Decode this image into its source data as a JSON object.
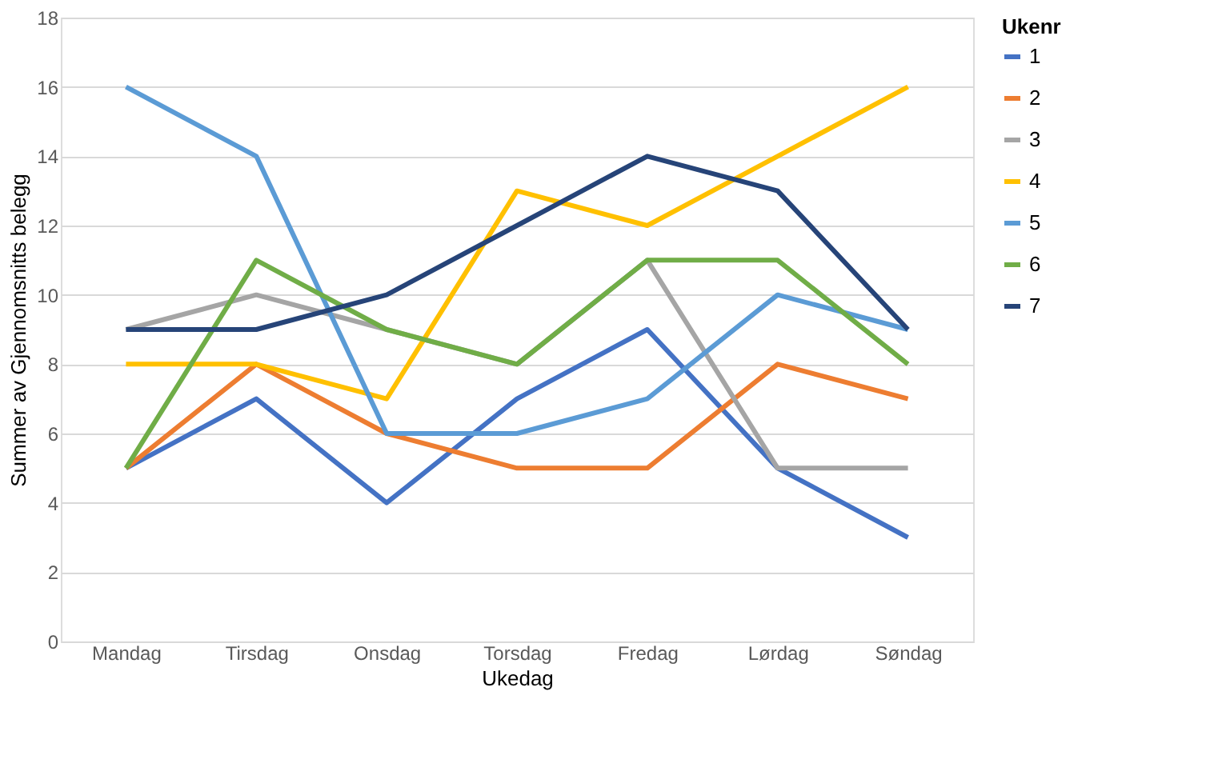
{
  "chart_data": {
    "type": "line",
    "ylabel": "Summer av Gjennomsnitts belegg",
    "xlabel": "Ukedag",
    "legend_title": "Ukenr",
    "categories": [
      "Mandag",
      "Tirsdag",
      "Onsdag",
      "Torsdag",
      "Fredag",
      "Lørdag",
      "Søndag"
    ],
    "series": [
      {
        "name": "1",
        "color": "#4472c4",
        "values": [
          5,
          7,
          4,
          7,
          9,
          5,
          3
        ]
      },
      {
        "name": "2",
        "color": "#ed7d31",
        "values": [
          5,
          8,
          6,
          5,
          5,
          8,
          7
        ]
      },
      {
        "name": "3",
        "color": "#a5a5a5",
        "values": [
          9,
          10,
          9,
          8,
          11,
          5,
          5
        ]
      },
      {
        "name": "4",
        "color": "#ffc000",
        "values": [
          8,
          8,
          7,
          13,
          12,
          14,
          16
        ]
      },
      {
        "name": "5",
        "color": "#5b9bd5",
        "values": [
          16,
          14,
          6,
          6,
          7,
          10,
          9
        ]
      },
      {
        "name": "6",
        "color": "#70ad47",
        "values": [
          5,
          11,
          9,
          8,
          11,
          11,
          8
        ]
      },
      {
        "name": "7",
        "color": "#264478",
        "values": [
          9,
          9,
          10,
          12,
          14,
          13,
          9
        ]
      }
    ],
    "ylim": [
      0,
      18
    ],
    "yticks": [
      0,
      2,
      4,
      6,
      8,
      10,
      12,
      14,
      16,
      18
    ],
    "grid": "y",
    "legend": "right",
    "marker": "none",
    "line_style": "solid"
  }
}
